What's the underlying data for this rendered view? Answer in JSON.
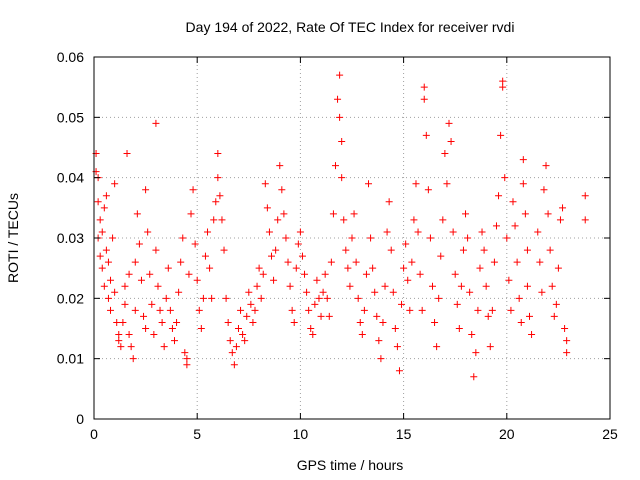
{
  "chart_data": {
    "type": "scatter",
    "title": "Day 194 of 2022, Rate Of TEC Index for receiver rvdi",
    "xlabel": "GPS time / hours",
    "ylabel": "ROTI / TECUs",
    "xlim": [
      0,
      25
    ],
    "ylim": [
      0,
      0.06
    ],
    "x_ticks": [
      0,
      5,
      10,
      15,
      20,
      25
    ],
    "y_ticks": [
      0,
      0.01,
      0.02,
      0.03,
      0.04,
      0.05,
      0.06
    ],
    "x_tick_labels": [
      "0",
      "5",
      "10",
      "15",
      "20",
      "25"
    ],
    "y_tick_labels": [
      "0",
      "0.01",
      "0.02",
      "0.03",
      "0.04",
      "0.05",
      "0.06"
    ],
    "grid": true,
    "grid_style": "dotted",
    "marker": "plus",
    "color": "#ff0000",
    "series": [
      {
        "values": [
          [
            0.1,
            0.044
          ],
          [
            0.1,
            0.041
          ],
          [
            0.2,
            0.04
          ],
          [
            0.2,
            0.036
          ],
          [
            0.2,
            0.03
          ],
          [
            0.3,
            0.027
          ],
          [
            0.3,
            0.033
          ],
          [
            0.4,
            0.031
          ],
          [
            0.4,
            0.025
          ],
          [
            0.5,
            0.022
          ],
          [
            0.5,
            0.035
          ],
          [
            0.6,
            0.037
          ],
          [
            0.6,
            0.028
          ],
          [
            0.7,
            0.026
          ],
          [
            0.7,
            0.02
          ],
          [
            0.8,
            0.018
          ],
          [
            0.8,
            0.023
          ],
          [
            0.9,
            0.03
          ],
          [
            1.0,
            0.039
          ],
          [
            1.0,
            0.021
          ],
          [
            1.1,
            0.016
          ],
          [
            1.2,
            0.014
          ],
          [
            1.2,
            0.013
          ],
          [
            1.3,
            0.012
          ],
          [
            1.4,
            0.016
          ],
          [
            1.5,
            0.019
          ],
          [
            1.5,
            0.022
          ],
          [
            1.6,
            0.044
          ],
          [
            1.7,
            0.024
          ],
          [
            1.7,
            0.014
          ],
          [
            1.8,
            0.012
          ],
          [
            1.9,
            0.01
          ],
          [
            2.0,
            0.018
          ],
          [
            2.0,
            0.026
          ],
          [
            2.1,
            0.034
          ],
          [
            2.2,
            0.029
          ],
          [
            2.3,
            0.023
          ],
          [
            2.4,
            0.017
          ],
          [
            2.5,
            0.015
          ],
          [
            2.5,
            0.038
          ],
          [
            2.6,
            0.031
          ],
          [
            2.7,
            0.024
          ],
          [
            2.8,
            0.019
          ],
          [
            2.9,
            0.014
          ],
          [
            3.0,
            0.049
          ],
          [
            3.0,
            0.028
          ],
          [
            3.1,
            0.022
          ],
          [
            3.2,
            0.018
          ],
          [
            3.3,
            0.016
          ],
          [
            3.4,
            0.012
          ],
          [
            3.5,
            0.02
          ],
          [
            3.6,
            0.025
          ],
          [
            3.7,
            0.018
          ],
          [
            3.8,
            0.015
          ],
          [
            3.9,
            0.013
          ],
          [
            4.0,
            0.016
          ],
          [
            4.1,
            0.021
          ],
          [
            4.2,
            0.026
          ],
          [
            4.3,
            0.03
          ],
          [
            4.4,
            0.011
          ],
          [
            4.5,
            0.009
          ],
          [
            4.5,
            0.01
          ],
          [
            4.6,
            0.024
          ],
          [
            4.7,
            0.034
          ],
          [
            4.8,
            0.038
          ],
          [
            4.9,
            0.029
          ],
          [
            5.0,
            0.023
          ],
          [
            5.1,
            0.018
          ],
          [
            5.2,
            0.015
          ],
          [
            5.3,
            0.02
          ],
          [
            5.4,
            0.027
          ],
          [
            5.5,
            0.031
          ],
          [
            5.6,
            0.025
          ],
          [
            5.7,
            0.02
          ],
          [
            5.8,
            0.033
          ],
          [
            5.9,
            0.036
          ],
          [
            6.0,
            0.044
          ],
          [
            6.0,
            0.04
          ],
          [
            6.1,
            0.037
          ],
          [
            6.2,
            0.033
          ],
          [
            6.3,
            0.028
          ],
          [
            6.4,
            0.02
          ],
          [
            6.5,
            0.016
          ],
          [
            6.6,
            0.013
          ],
          [
            6.7,
            0.011
          ],
          [
            6.8,
            0.009
          ],
          [
            6.9,
            0.012
          ],
          [
            7.0,
            0.015
          ],
          [
            7.1,
            0.018
          ],
          [
            7.2,
            0.014
          ],
          [
            7.3,
            0.013
          ],
          [
            7.4,
            0.017
          ],
          [
            7.5,
            0.021
          ],
          [
            7.6,
            0.019
          ],
          [
            7.7,
            0.016
          ],
          [
            7.8,
            0.018
          ],
          [
            7.9,
            0.022
          ],
          [
            8.0,
            0.025
          ],
          [
            8.1,
            0.02
          ],
          [
            8.2,
            0.024
          ],
          [
            8.3,
            0.039
          ],
          [
            8.4,
            0.035
          ],
          [
            8.5,
            0.031
          ],
          [
            8.6,
            0.027
          ],
          [
            8.7,
            0.023
          ],
          [
            8.8,
            0.028
          ],
          [
            8.9,
            0.033
          ],
          [
            9.0,
            0.042
          ],
          [
            9.1,
            0.038
          ],
          [
            9.2,
            0.034
          ],
          [
            9.3,
            0.03
          ],
          [
            9.4,
            0.026
          ],
          [
            9.5,
            0.022
          ],
          [
            9.6,
            0.018
          ],
          [
            9.7,
            0.016
          ],
          [
            9.8,
            0.025
          ],
          [
            9.9,
            0.029
          ],
          [
            10.0,
            0.031
          ],
          [
            10.1,
            0.027
          ],
          [
            10.2,
            0.024
          ],
          [
            10.3,
            0.021
          ],
          [
            10.4,
            0.018
          ],
          [
            10.5,
            0.015
          ],
          [
            10.6,
            0.014
          ],
          [
            10.7,
            0.019
          ],
          [
            10.8,
            0.023
          ],
          [
            10.9,
            0.02
          ],
          [
            11.0,
            0.017
          ],
          [
            11.1,
            0.021
          ],
          [
            11.2,
            0.024
          ],
          [
            11.3,
            0.02
          ],
          [
            11.4,
            0.017
          ],
          [
            11.5,
            0.026
          ],
          [
            11.6,
            0.034
          ],
          [
            11.7,
            0.042
          ],
          [
            11.8,
            0.053
          ],
          [
            11.9,
            0.057
          ],
          [
            11.9,
            0.05
          ],
          [
            12.0,
            0.046
          ],
          [
            12.0,
            0.04
          ],
          [
            12.1,
            0.033
          ],
          [
            12.2,
            0.028
          ],
          [
            12.3,
            0.025
          ],
          [
            12.4,
            0.022
          ],
          [
            12.5,
            0.03
          ],
          [
            12.6,
            0.034
          ],
          [
            12.7,
            0.026
          ],
          [
            12.8,
            0.02
          ],
          [
            12.9,
            0.016
          ],
          [
            13.0,
            0.014
          ],
          [
            13.1,
            0.018
          ],
          [
            13.2,
            0.024
          ],
          [
            13.3,
            0.039
          ],
          [
            13.4,
            0.03
          ],
          [
            13.5,
            0.025
          ],
          [
            13.6,
            0.021
          ],
          [
            13.7,
            0.017
          ],
          [
            13.8,
            0.013
          ],
          [
            13.9,
            0.01
          ],
          [
            14.0,
            0.016
          ],
          [
            14.1,
            0.022
          ],
          [
            14.2,
            0.031
          ],
          [
            14.3,
            0.036
          ],
          [
            14.4,
            0.028
          ],
          [
            14.5,
            0.021
          ],
          [
            14.6,
            0.015
          ],
          [
            14.7,
            0.012
          ],
          [
            14.8,
            0.008
          ],
          [
            14.9,
            0.019
          ],
          [
            15.0,
            0.025
          ],
          [
            15.1,
            0.029
          ],
          [
            15.2,
            0.023
          ],
          [
            15.3,
            0.018
          ],
          [
            15.4,
            0.026
          ],
          [
            15.5,
            0.033
          ],
          [
            15.6,
            0.039
          ],
          [
            15.7,
            0.031
          ],
          [
            15.8,
            0.024
          ],
          [
            15.9,
            0.018
          ],
          [
            16.0,
            0.055
          ],
          [
            16.0,
            0.053
          ],
          [
            16.1,
            0.047
          ],
          [
            16.2,
            0.038
          ],
          [
            16.3,
            0.03
          ],
          [
            16.4,
            0.022
          ],
          [
            16.5,
            0.016
          ],
          [
            16.6,
            0.012
          ],
          [
            16.7,
            0.02
          ],
          [
            16.8,
            0.027
          ],
          [
            16.9,
            0.033
          ],
          [
            17.0,
            0.044
          ],
          [
            17.1,
            0.039
          ],
          [
            17.2,
            0.049
          ],
          [
            17.3,
            0.046
          ],
          [
            17.4,
            0.031
          ],
          [
            17.5,
            0.024
          ],
          [
            17.6,
            0.019
          ],
          [
            17.7,
            0.015
          ],
          [
            17.8,
            0.022
          ],
          [
            17.9,
            0.028
          ],
          [
            18.0,
            0.034
          ],
          [
            18.1,
            0.03
          ],
          [
            18.2,
            0.021
          ],
          [
            18.3,
            0.014
          ],
          [
            18.4,
            0.007
          ],
          [
            18.5,
            0.011
          ],
          [
            18.6,
            0.018
          ],
          [
            18.7,
            0.025
          ],
          [
            18.8,
            0.031
          ],
          [
            18.9,
            0.028
          ],
          [
            19.0,
            0.022
          ],
          [
            19.1,
            0.017
          ],
          [
            19.2,
            0.012
          ],
          [
            19.3,
            0.018
          ],
          [
            19.4,
            0.026
          ],
          [
            19.5,
            0.032
          ],
          [
            19.6,
            0.037
          ],
          [
            19.7,
            0.047
          ],
          [
            19.8,
            0.056
          ],
          [
            19.8,
            0.055
          ],
          [
            19.9,
            0.04
          ],
          [
            20.0,
            0.03
          ],
          [
            20.1,
            0.023
          ],
          [
            20.2,
            0.018
          ],
          [
            20.3,
            0.036
          ],
          [
            20.4,
            0.032
          ],
          [
            20.5,
            0.026
          ],
          [
            20.6,
            0.02
          ],
          [
            20.7,
            0.016
          ],
          [
            20.8,
            0.043
          ],
          [
            20.8,
            0.039
          ],
          [
            20.9,
            0.034
          ],
          [
            21.0,
            0.028
          ],
          [
            21.0,
            0.022
          ],
          [
            21.1,
            0.017
          ],
          [
            21.2,
            0.014
          ],
          [
            21.5,
            0.031
          ],
          [
            21.6,
            0.026
          ],
          [
            21.7,
            0.021
          ],
          [
            21.8,
            0.038
          ],
          [
            21.9,
            0.042
          ],
          [
            22.0,
            0.034
          ],
          [
            22.1,
            0.028
          ],
          [
            22.2,
            0.022
          ],
          [
            22.3,
            0.017
          ],
          [
            22.4,
            0.019
          ],
          [
            22.5,
            0.025
          ],
          [
            22.6,
            0.033
          ],
          [
            22.7,
            0.035
          ],
          [
            22.8,
            0.015
          ],
          [
            22.9,
            0.011
          ],
          [
            22.9,
            0.013
          ],
          [
            23.8,
            0.037
          ],
          [
            23.8,
            0.033
          ]
        ]
      }
    ]
  }
}
